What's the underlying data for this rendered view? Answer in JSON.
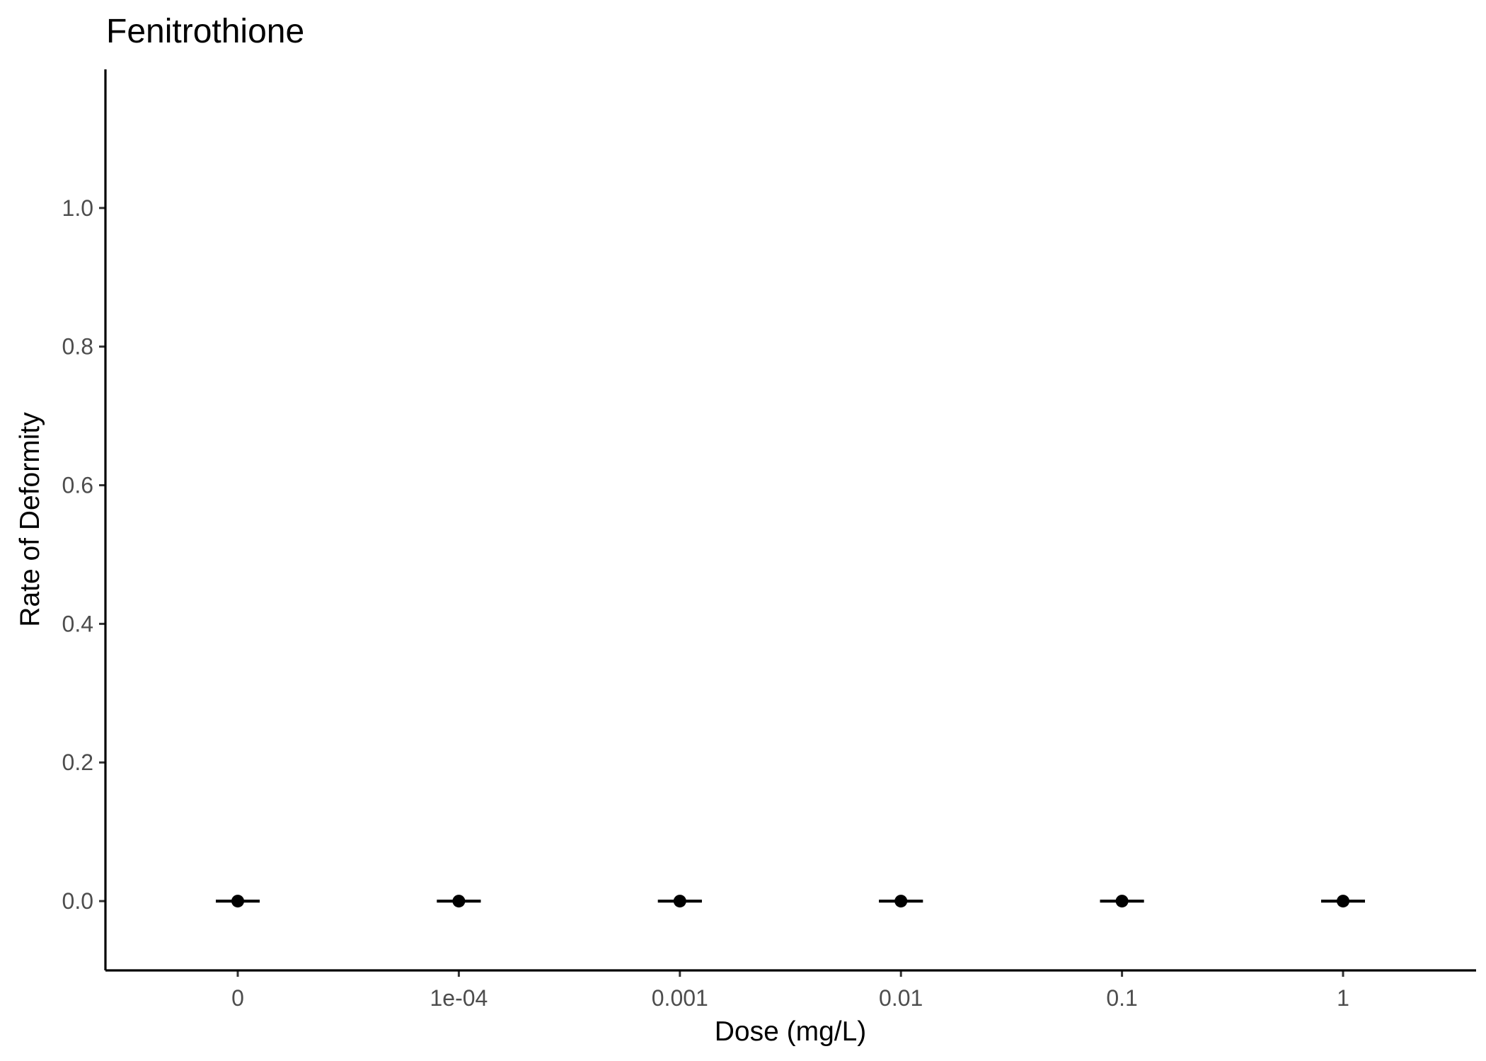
{
  "chart_data": {
    "type": "scatter",
    "title": "Fenitrothione",
    "xlabel": "Dose (mg/L)",
    "ylabel": "Rate of Deformity",
    "categories": [
      "0",
      "1e-04",
      "0.001",
      "0.01",
      "0.1",
      "1"
    ],
    "series": [
      {
        "values": [
          0,
          0,
          0,
          0,
          0,
          0
        ],
        "error_low": [
          0,
          0,
          0,
          0,
          0,
          0
        ],
        "error_high": [
          0,
          0,
          0,
          0,
          0,
          0
        ]
      }
    ],
    "yticks": [
      0.0,
      0.2,
      0.4,
      0.6,
      0.8,
      1.0
    ],
    "ytick_labels": [
      "0.0",
      "0.2",
      "0.4",
      "0.6",
      "0.8",
      "1.0"
    ],
    "ylim": [
      -0.1,
      1.2
    ],
    "grid": false,
    "legend": "none",
    "colors": {
      "point": "#000000",
      "axis": "#000000",
      "tick_label": "#4d4d4d"
    }
  }
}
